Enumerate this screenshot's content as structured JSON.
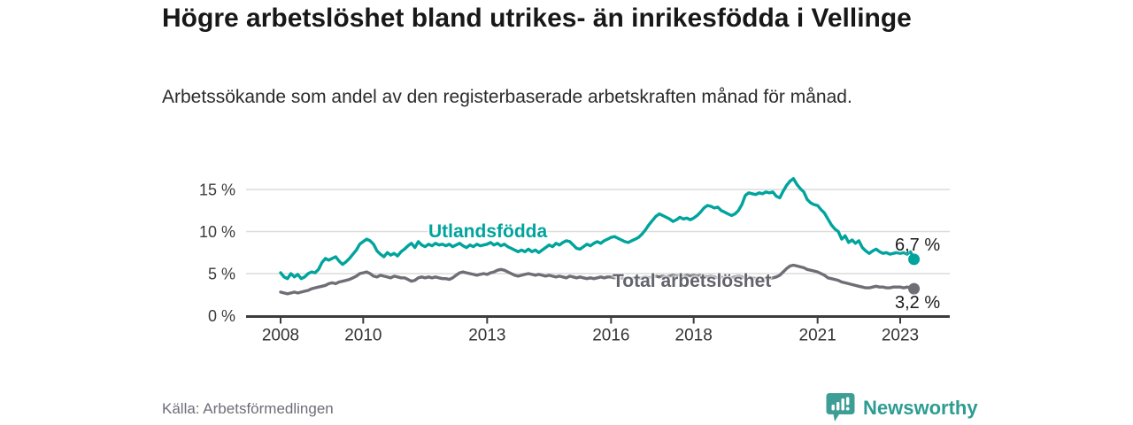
{
  "header": {
    "title": "Högre arbetslöshet bland utrikes- än inrikesfödda i Vellinge",
    "subtitle": "Arbetssökande som andel av den registerbaserade arbetskraften månad för månad."
  },
  "footer": {
    "source": "Källa: Arbetsförmedlingen",
    "brand": "Newsworthy",
    "brand_color": "#2e9c92",
    "logo_icon": "speech-bubble-bar-chart-exclamation"
  },
  "chart_data": {
    "type": "line",
    "title": "Högre arbetslöshet bland utrikes- än inrikesfödda i Vellinge",
    "subtitle": "Arbetssökande som andel av den registerbaserade arbetskraften månad för månad.",
    "x_unit": "month",
    "x_start": "2008-01",
    "x_end": "2023-05",
    "xlabel": "",
    "ylabel": "",
    "ylim": [
      0,
      16.5
    ],
    "grid": "horizontal",
    "y_ticks": [
      {
        "v": 0,
        "label": "0 %"
      },
      {
        "v": 5,
        "label": "5 %"
      },
      {
        "v": 10,
        "label": "10 %"
      },
      {
        "v": 15,
        "label": "15 %"
      }
    ],
    "x_ticks": [
      {
        "year": 2008,
        "label": "2008"
      },
      {
        "year": 2010,
        "label": "2010"
      },
      {
        "year": 2013,
        "label": "2013"
      },
      {
        "year": 2016,
        "label": "2016"
      },
      {
        "year": 2018,
        "label": "2018"
      },
      {
        "year": 2021,
        "label": "2021"
      },
      {
        "year": 2023,
        "label": "2023"
      }
    ],
    "axis_color": "#3d3d3d",
    "gridline_color": "#dcdcdc",
    "series": [
      {
        "name": "Utlandsfödda",
        "color": "#00a49c",
        "end_label": "6,7 %",
        "end_value": 6.7,
        "values": [
          5.1,
          4.6,
          4.4,
          5.0,
          4.6,
          4.9,
          4.4,
          4.6,
          5.0,
          5.2,
          5.1,
          5.5,
          6.3,
          6.8,
          6.6,
          6.8,
          7.0,
          6.5,
          6.1,
          6.4,
          6.8,
          7.3,
          7.8,
          8.5,
          8.8,
          9.1,
          8.9,
          8.5,
          7.7,
          7.3,
          7.0,
          7.5,
          7.2,
          7.4,
          7.1,
          7.6,
          7.9,
          8.3,
          8.6,
          8.1,
          8.8,
          8.4,
          8.2,
          8.5,
          8.3,
          8.6,
          8.4,
          8.5,
          8.3,
          8.5,
          8.2,
          8.4,
          8.6,
          8.3,
          8.1,
          8.4,
          8.2,
          8.5,
          8.3,
          8.4,
          8.5,
          8.7,
          8.4,
          8.6,
          8.3,
          8.5,
          8.2,
          8.0,
          7.8,
          7.6,
          7.8,
          7.6,
          7.9,
          7.6,
          7.8,
          7.5,
          7.8,
          8.1,
          8.4,
          8.2,
          8.6,
          8.4,
          8.7,
          8.9,
          8.8,
          8.4,
          8.0,
          7.9,
          8.2,
          8.5,
          8.3,
          8.6,
          8.8,
          8.6,
          8.9,
          9.1,
          9.3,
          9.4,
          9.2,
          9.0,
          8.8,
          8.7,
          8.9,
          9.1,
          9.3,
          9.7,
          10.2,
          10.8,
          11.3,
          11.8,
          12.1,
          11.9,
          11.7,
          11.5,
          11.2,
          11.4,
          11.7,
          11.5,
          11.6,
          11.4,
          11.6,
          11.9,
          12.3,
          12.8,
          13.1,
          13.0,
          12.8,
          12.9,
          12.5,
          12.3,
          12.1,
          11.9,
          12.1,
          12.5,
          13.2,
          14.3,
          14.6,
          14.5,
          14.4,
          14.6,
          14.5,
          14.7,
          14.6,
          14.7,
          14.2,
          14.0,
          14.8,
          15.5,
          16.0,
          16.3,
          15.6,
          15.1,
          14.7,
          13.8,
          13.4,
          13.2,
          13.1,
          12.6,
          12.2,
          11.5,
          10.8,
          10.3,
          10.0,
          9.1,
          9.5,
          8.7,
          9.0,
          8.6,
          8.9,
          8.1,
          7.7,
          7.4,
          7.7,
          7.9,
          7.6,
          7.4,
          7.5,
          7.3,
          7.4,
          7.5,
          7.4,
          7.5,
          7.3,
          7.6,
          6.7
        ]
      },
      {
        "name": "Total arbetslöshet",
        "color": "#6e6e76",
        "label_color": "#63636d",
        "end_label": "3,2 %",
        "end_value": 3.2,
        "values": [
          2.8,
          2.7,
          2.6,
          2.7,
          2.8,
          2.7,
          2.8,
          2.9,
          3.0,
          3.2,
          3.3,
          3.4,
          3.5,
          3.6,
          3.8,
          3.9,
          3.8,
          4.0,
          4.1,
          4.2,
          4.3,
          4.5,
          4.7,
          5.0,
          5.1,
          5.2,
          5.0,
          4.7,
          4.6,
          4.8,
          4.7,
          4.6,
          4.5,
          4.7,
          4.6,
          4.5,
          4.5,
          4.3,
          4.1,
          4.2,
          4.5,
          4.6,
          4.5,
          4.6,
          4.5,
          4.6,
          4.5,
          4.4,
          4.4,
          4.3,
          4.5,
          4.8,
          5.1,
          5.2,
          5.1,
          5.0,
          4.9,
          4.8,
          4.9,
          5.0,
          4.9,
          5.1,
          5.2,
          5.4,
          5.5,
          5.4,
          5.2,
          5.0,
          4.8,
          4.7,
          4.8,
          4.9,
          5.0,
          4.9,
          4.8,
          4.9,
          4.8,
          4.7,
          4.8,
          4.7,
          4.6,
          4.7,
          4.6,
          4.5,
          4.7,
          4.6,
          4.5,
          4.6,
          4.5,
          4.4,
          4.5,
          4.4,
          4.5,
          4.6,
          4.5,
          4.6,
          4.6,
          4.5,
          4.6,
          4.5,
          4.4,
          4.5,
          4.4,
          4.5,
          4.4,
          4.5,
          4.6,
          4.5,
          4.6,
          4.7,
          4.6,
          4.7,
          4.6,
          4.7,
          4.8,
          4.7,
          4.8,
          4.7,
          4.8,
          4.7,
          4.8,
          4.7,
          4.8,
          4.7,
          4.6,
          4.7,
          4.6,
          4.5,
          4.6,
          4.5,
          4.6,
          4.5,
          4.6,
          4.7,
          4.6,
          4.5,
          4.6,
          4.5,
          4.4,
          4.5,
          4.4,
          4.3,
          4.4,
          4.5,
          4.6,
          4.8,
          5.2,
          5.6,
          5.9,
          6.0,
          5.9,
          5.8,
          5.7,
          5.5,
          5.4,
          5.3,
          5.2,
          5.0,
          4.8,
          4.5,
          4.4,
          4.3,
          4.2,
          4.0,
          3.9,
          3.8,
          3.7,
          3.6,
          3.5,
          3.4,
          3.3,
          3.3,
          3.4,
          3.5,
          3.4,
          3.4,
          3.3,
          3.3,
          3.4,
          3.4,
          3.4,
          3.3,
          3.4,
          3.3,
          3.2
        ]
      }
    ],
    "legend_position": "inline-labels"
  }
}
